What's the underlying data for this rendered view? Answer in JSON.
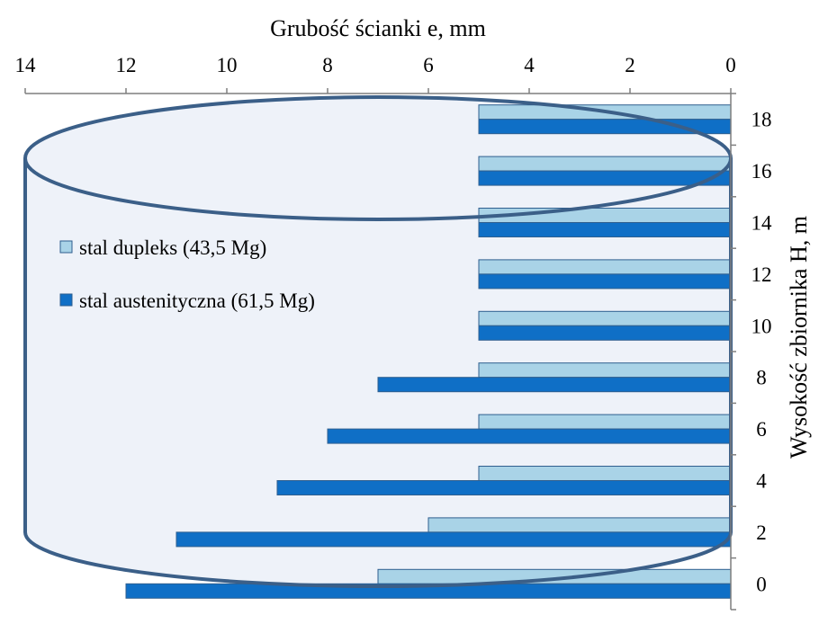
{
  "chart_data": {
    "type": "bar",
    "orientation": "horizontal",
    "xlabel": "Grubość ścianki e, mm",
    "ylabel": "Wysokość  zbiornika H, m",
    "xlim": [
      14,
      0
    ],
    "x_axis_position": "top",
    "y_axis_position": "right",
    "x_ticks": [
      "14",
      "12",
      "10",
      "8",
      "6",
      "4",
      "2",
      "0"
    ],
    "categories": [
      "0",
      "2",
      "4",
      "6",
      "8",
      "10",
      "12",
      "14",
      "16",
      "18"
    ],
    "series": [
      {
        "name": "stal dupleks (43,5 Mg)",
        "values": [
          7,
          6,
          5,
          5,
          5,
          5,
          5,
          5,
          5,
          5
        ]
      },
      {
        "name": "stal austenityczna (61,5 Mg)",
        "values": [
          12,
          11,
          9,
          8,
          7,
          5,
          5,
          5,
          5,
          5
        ]
      }
    ],
    "legend": "inside-left",
    "grid": false,
    "background_decoration": "tank-cylinder",
    "colors": {
      "stal dupleks (43,5 Mg)": "#a9d3e7",
      "stal austenityczna (61,5 Mg)": "#0f6fc6",
      "cylinder_outline": "#3b5f88",
      "cylinder_fill": "#eef2f9"
    }
  }
}
